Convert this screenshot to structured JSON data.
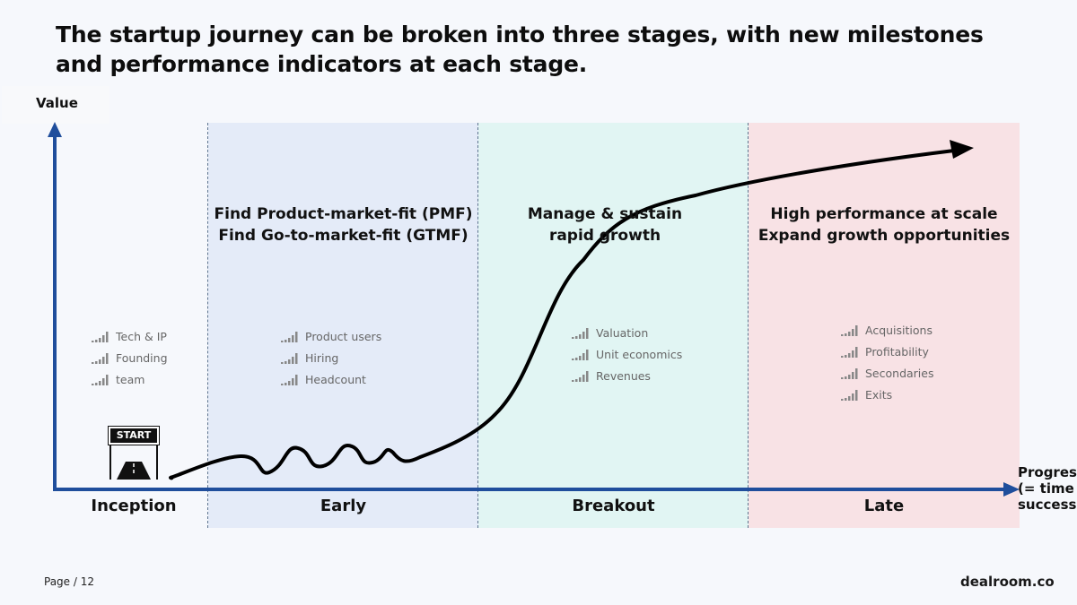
{
  "title": "The startup journey can be broken into three stages, with new milestones and performance indicators at each stage.",
  "axis": {
    "y_label": "Value",
    "x_label": "Progress\n(= time x\nsuccess)"
  },
  "stages": [
    {
      "name": "Inception",
      "kpis": [
        "Tech & IP",
        "Founding",
        "team"
      ]
    },
    {
      "name": "Early",
      "heading": [
        "Find Product-market-fit (PMF)",
        "Find Go-to-market-fit (GTMF)"
      ],
      "kpis": [
        "Product users",
        "Hiring",
        "Headcount"
      ]
    },
    {
      "name": "Breakout",
      "heading": [
        "Manage & sustain",
        "rapid growth"
      ],
      "kpis": [
        "Valuation",
        "Unit economics",
        "Revenues"
      ]
    },
    {
      "name": "Late",
      "heading": [
        "High performance at scale",
        "Expand growth opportunities"
      ],
      "kpis": [
        "Acquisitions",
        "Profitability",
        "Secondaries",
        "Exits"
      ]
    }
  ],
  "start_badge": "START",
  "footer": {
    "page": "Page / 12",
    "brand": "dealroom.co"
  },
  "colors": {
    "axis": "#1f4e9c",
    "early": "#e4ebf8",
    "breakout": "#e1f5f3",
    "late": "#f8e2e5",
    "curve": "#000000"
  },
  "icons": {
    "kpi": "signal-bars-icon",
    "start": "start-road-icon"
  }
}
